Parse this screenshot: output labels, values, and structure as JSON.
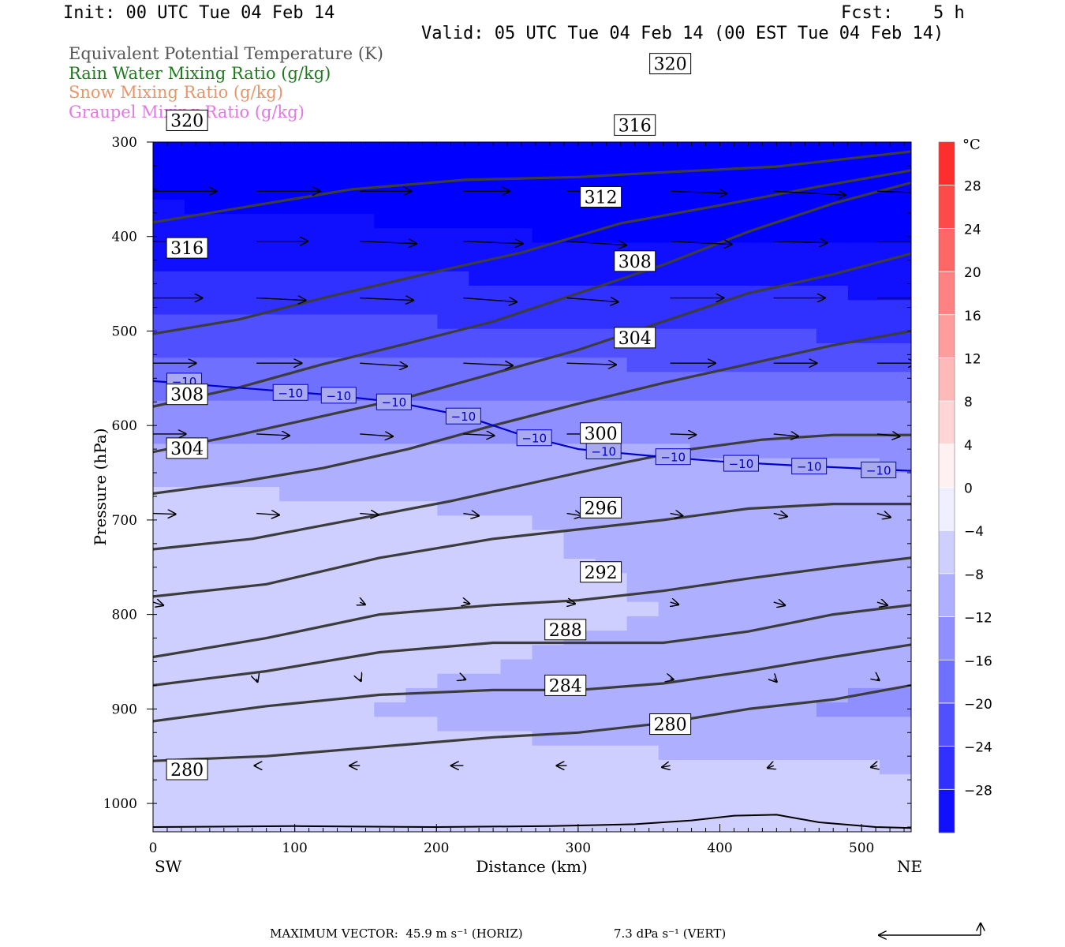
{
  "header": {
    "init": "Init: 00 UTC Tue 04 Feb 14",
    "fcst_label": "Fcst:",
    "fcst_value": "5 h",
    "valid": "Valid: 05 UTC Tue 04 Feb 14 (00 EST Tue 04 Feb 14)"
  },
  "legend": {
    "theta_e": {
      "label": "Equivalent Potential Temperature (K)",
      "color": "#555555"
    },
    "rain": {
      "label": "Rain Water Mixing Ratio (g/kg)",
      "color": "#1f7a1f"
    },
    "snow": {
      "label": "Snow Mixing Ratio (g/kg)",
      "color": "#e8956a"
    },
    "graupel": {
      "label": "Graupel Mixing Ratio (g/kg)",
      "color": "#e079e0"
    }
  },
  "footer": {
    "max_vector": "MAXIMUM VECTOR:  45.9 m s⁻¹ (HORIZ)",
    "vert": "7.3 dPa s⁻¹ (VERT)"
  },
  "chart_data": {
    "type": "cross-section",
    "xlabel": "Distance (km)",
    "ylabel": "Pressure (hPa)",
    "xlim": [
      0,
      535
    ],
    "ylim": [
      1030,
      300
    ],
    "x_ticks": [
      0,
      100,
      200,
      300,
      400,
      500
    ],
    "y_ticks": [
      300,
      400,
      500,
      600,
      700,
      800,
      900,
      1000
    ],
    "x_end_labels": {
      "left": "SW",
      "right": "NE"
    },
    "colorbar": {
      "unit": "°C",
      "tick_labels": [
        "28",
        "24",
        "20",
        "16",
        "12",
        "8",
        "4",
        "0",
        "−4",
        "−8",
        "−12",
        "−16",
        "−20",
        "−24",
        "−28"
      ],
      "tick_values": [
        28,
        24,
        20,
        16,
        12,
        8,
        4,
        0,
        -4,
        -8,
        -12,
        -16,
        -20,
        -24,
        -28
      ],
      "range": [
        -32,
        32
      ],
      "warm_color": "#ff2020",
      "cold_color": "#0000ff"
    },
    "temperature_shading": {
      "description_levels_hPa": [
        300,
        400,
        500,
        600,
        700,
        800,
        900,
        1000
      ],
      "left_temp_C": [
        -34,
        -31,
        -22,
        -13,
        -5,
        -4,
        -6,
        -5
      ],
      "right_temp_C": [
        -35,
        -33,
        -25,
        -13,
        -11,
        -10,
        -13,
        -5
      ]
    },
    "isotherm_minus10": {
      "label": "−10",
      "color": "#0000cc",
      "points": [
        [
          0,
          553
        ],
        [
          60,
          560
        ],
        [
          120,
          567
        ],
        [
          170,
          575
        ],
        [
          220,
          590
        ],
        [
          260,
          610
        ],
        [
          300,
          625
        ],
        [
          350,
          632
        ],
        [
          400,
          638
        ],
        [
          450,
          642
        ],
        [
          535,
          648
        ]
      ],
      "label_positions": [
        [
          22,
          553
        ],
        [
          97,
          565
        ],
        [
          131,
          568
        ],
        [
          170,
          575
        ],
        [
          219,
          590
        ],
        [
          269,
          613
        ],
        [
          318,
          627
        ],
        [
          367,
          633
        ],
        [
          415,
          640
        ],
        [
          463,
          643
        ],
        [
          512,
          647
        ]
      ]
    },
    "theta_e_contours": [
      {
        "value": "320",
        "points": [
          [
            0,
            385
          ],
          [
            60,
            370
          ],
          [
            140,
            350
          ],
          [
            220,
            340
          ],
          [
            300,
            337
          ],
          [
            360,
            332
          ],
          [
            440,
            326
          ],
          [
            535,
            310
          ]
        ],
        "labels": [
          [
            24,
            277
          ],
          [
            365,
            217
          ]
        ]
      },
      {
        "value": "316",
        "points": [
          [
            0,
            503
          ],
          [
            60,
            488
          ],
          [
            120,
            465
          ],
          [
            200,
            437
          ],
          [
            260,
            417
          ],
          [
            330,
            386
          ],
          [
            400,
            367
          ],
          [
            470,
            347
          ],
          [
            535,
            330
          ]
        ],
        "labels": [
          [
            24,
            412
          ],
          [
            340,
            282
          ]
        ]
      },
      {
        "value": "312",
        "points": [
          [
            0,
            580
          ],
          [
            60,
            560
          ],
          [
            120,
            535
          ],
          [
            180,
            513
          ],
          [
            240,
            490
          ],
          [
            300,
            460
          ],
          [
            360,
            430
          ],
          [
            420,
            395
          ],
          [
            480,
            365
          ],
          [
            535,
            343
          ]
        ],
        "labels": [
          [
            316,
            358
          ]
        ]
      },
      {
        "value": "308",
        "points": [
          [
            0,
            628
          ],
          [
            60,
            610
          ],
          [
            120,
            590
          ],
          [
            180,
            570
          ],
          [
            240,
            545
          ],
          [
            300,
            520
          ],
          [
            360,
            490
          ],
          [
            420,
            460
          ],
          [
            480,
            440
          ],
          [
            535,
            418
          ]
        ],
        "labels": [
          [
            24,
            567
          ],
          [
            340,
            426
          ]
        ]
      },
      {
        "value": "304",
        "points": [
          [
            0,
            672
          ],
          [
            60,
            660
          ],
          [
            120,
            645
          ],
          [
            180,
            625
          ],
          [
            240,
            600
          ],
          [
            300,
            577
          ],
          [
            360,
            555
          ],
          [
            420,
            535
          ],
          [
            480,
            515
          ],
          [
            535,
            500
          ]
        ],
        "labels": [
          [
            24,
            624
          ],
          [
            340,
            507
          ]
        ]
      },
      {
        "value": "300",
        "points": [
          [
            0,
            731
          ],
          [
            70,
            720
          ],
          [
            140,
            700
          ],
          [
            210,
            680
          ],
          [
            270,
            660
          ],
          [
            330,
            640
          ],
          [
            380,
            625
          ],
          [
            430,
            615
          ],
          [
            480,
            610
          ],
          [
            535,
            610
          ]
        ],
        "labels": [
          [
            316,
            608
          ]
        ]
      },
      {
        "value": "296",
        "points": [
          [
            0,
            781
          ],
          [
            80,
            768
          ],
          [
            160,
            740
          ],
          [
            240,
            720
          ],
          [
            300,
            710
          ],
          [
            360,
            700
          ],
          [
            420,
            688
          ],
          [
            480,
            683
          ],
          [
            535,
            683
          ]
        ],
        "labels": [
          [
            316,
            687
          ]
        ]
      },
      {
        "value": "292",
        "points": [
          [
            0,
            845
          ],
          [
            80,
            825
          ],
          [
            160,
            800
          ],
          [
            240,
            790
          ],
          [
            300,
            785
          ],
          [
            360,
            775
          ],
          [
            420,
            762
          ],
          [
            480,
            750
          ],
          [
            535,
            740
          ]
        ],
        "labels": [
          [
            316,
            755
          ]
        ]
      },
      {
        "value": "288",
        "points": [
          [
            0,
            875
          ],
          [
            80,
            860
          ],
          [
            160,
            840
          ],
          [
            240,
            830
          ],
          [
            300,
            830
          ],
          [
            360,
            830
          ],
          [
            420,
            818
          ],
          [
            480,
            800
          ],
          [
            535,
            790
          ]
        ],
        "labels": [
          [
            291,
            816
          ]
        ]
      },
      {
        "value": "284",
        "points": [
          [
            0,
            913
          ],
          [
            80,
            897
          ],
          [
            160,
            885
          ],
          [
            240,
            880
          ],
          [
            300,
            880
          ],
          [
            360,
            873
          ],
          [
            420,
            860
          ],
          [
            480,
            845
          ],
          [
            535,
            832
          ]
        ],
        "labels": [
          [
            291,
            875
          ]
        ]
      },
      {
        "value": "280",
        "points": [
          [
            0,
            955
          ],
          [
            80,
            950
          ],
          [
            160,
            940
          ],
          [
            240,
            930
          ],
          [
            300,
            925
          ],
          [
            360,
            915
          ],
          [
            420,
            900
          ],
          [
            480,
            890
          ],
          [
            535,
            875
          ]
        ],
        "labels": [
          [
            24,
            964
          ],
          [
            365,
            916
          ]
        ]
      }
    ],
    "surface_line": {
      "points": [
        [
          0,
          1025
        ],
        [
          100,
          1024
        ],
        [
          200,
          1025
        ],
        [
          280,
          1024
        ],
        [
          340,
          1022
        ],
        [
          380,
          1018
        ],
        [
          410,
          1013
        ],
        [
          440,
          1012
        ],
        [
          470,
          1020
        ],
        [
          510,
          1025
        ],
        [
          535,
          1026
        ]
      ]
    },
    "wind_vectors": [
      {
        "x": 0,
        "p": 352,
        "u": 62,
        "w": 0
      },
      {
        "x": 73,
        "p": 352,
        "u": 62,
        "w": 0
      },
      {
        "x": 146,
        "p": 352,
        "u": 50,
        "w": 0
      },
      {
        "x": 219,
        "p": 352,
        "u": 45,
        "w": 0
      },
      {
        "x": 292,
        "p": 352,
        "u": 45,
        "w": 0
      },
      {
        "x": 365,
        "p": 352,
        "u": 55,
        "w": 3
      },
      {
        "x": 438,
        "p": 352,
        "u": 70,
        "w": 5
      },
      {
        "x": 511,
        "p": 352,
        "u": 60,
        "w": 3
      },
      {
        "x": 0,
        "p": 405,
        "u": 50,
        "w": 0
      },
      {
        "x": 73,
        "p": 405,
        "u": 50,
        "w": 0
      },
      {
        "x": 146,
        "p": 405,
        "u": 55,
        "w": 3
      },
      {
        "x": 219,
        "p": 405,
        "u": 58,
        "w": 3
      },
      {
        "x": 292,
        "p": 405,
        "u": 58,
        "w": 5
      },
      {
        "x": 365,
        "p": 405,
        "u": 60,
        "w": 4
      },
      {
        "x": 438,
        "p": 405,
        "u": 52,
        "w": 2
      },
      {
        "x": 511,
        "p": 405,
        "u": 48,
        "w": 0
      },
      {
        "x": 0,
        "p": 465,
        "u": 48,
        "w": 0
      },
      {
        "x": 73,
        "p": 465,
        "u": 48,
        "w": 3
      },
      {
        "x": 146,
        "p": 465,
        "u": 52,
        "w": 3
      },
      {
        "x": 219,
        "p": 465,
        "u": 52,
        "w": 5
      },
      {
        "x": 292,
        "p": 465,
        "u": 50,
        "w": 5
      },
      {
        "x": 365,
        "p": 465,
        "u": 52,
        "w": 0
      },
      {
        "x": 438,
        "p": 465,
        "u": 50,
        "w": 0
      },
      {
        "x": 511,
        "p": 465,
        "u": 46,
        "w": 0
      },
      {
        "x": 0,
        "p": 534,
        "u": 42,
        "w": 0
      },
      {
        "x": 73,
        "p": 534,
        "u": 44,
        "w": 0
      },
      {
        "x": 146,
        "p": 534,
        "u": 46,
        "w": 4
      },
      {
        "x": 219,
        "p": 534,
        "u": 48,
        "w": 3
      },
      {
        "x": 292,
        "p": 534,
        "u": 48,
        "w": 2
      },
      {
        "x": 365,
        "p": 534,
        "u": 44,
        "w": 0
      },
      {
        "x": 438,
        "p": 534,
        "u": 42,
        "w": 0
      },
      {
        "x": 511,
        "p": 534,
        "u": 38,
        "w": 0
      },
      {
        "x": 0,
        "p": 609,
        "u": 32,
        "w": 0
      },
      {
        "x": 73,
        "p": 609,
        "u": 32,
        "w": 2
      },
      {
        "x": 146,
        "p": 609,
        "u": 32,
        "w": 3
      },
      {
        "x": 219,
        "p": 609,
        "u": 30,
        "w": 2
      },
      {
        "x": 292,
        "p": 609,
        "u": 28,
        "w": 0
      },
      {
        "x": 365,
        "p": 609,
        "u": 25,
        "w": 1
      },
      {
        "x": 438,
        "p": 609,
        "u": 24,
        "w": 3
      },
      {
        "x": 511,
        "p": 609,
        "u": 22,
        "w": 3
      },
      {
        "x": 0,
        "p": 693,
        "u": 22,
        "w": 1
      },
      {
        "x": 73,
        "p": 693,
        "u": 22,
        "w": 2
      },
      {
        "x": 146,
        "p": 693,
        "u": 18,
        "w": 2
      },
      {
        "x": 219,
        "p": 693,
        "u": 15,
        "w": 3
      },
      {
        "x": 292,
        "p": 693,
        "u": 15,
        "w": 3
      },
      {
        "x": 365,
        "p": 693,
        "u": 12,
        "w": 3
      },
      {
        "x": 438,
        "p": 693,
        "u": 13,
        "w": 4
      },
      {
        "x": 511,
        "p": 693,
        "u": 13,
        "w": 5
      },
      {
        "x": 0,
        "p": 787,
        "u": 10,
        "w": 4
      },
      {
        "x": 146,
        "p": 787,
        "u": 5,
        "w": 3
      },
      {
        "x": 219,
        "p": 787,
        "u": 6,
        "w": 2
      },
      {
        "x": 292,
        "p": 787,
        "u": 8,
        "w": 2
      },
      {
        "x": 365,
        "p": 787,
        "u": 8,
        "w": 3
      },
      {
        "x": 438,
        "p": 787,
        "u": 11,
        "w": 4
      },
      {
        "x": 511,
        "p": 787,
        "u": 10,
        "w": 4
      },
      {
        "x": 73,
        "p": 868,
        "u": 1,
        "w": 4
      },
      {
        "x": 146,
        "p": 868,
        "u": 1,
        "w": 3
      },
      {
        "x": 219,
        "p": 868,
        "u": 2,
        "w": 1
      },
      {
        "x": 365,
        "p": 868,
        "u": 3,
        "w": 1
      },
      {
        "x": 438,
        "p": 868,
        "u": 3,
        "w": 4
      },
      {
        "x": 511,
        "p": 868,
        "u": 2,
        "w": 2
      },
      {
        "x": 73,
        "p": 960,
        "u": -2,
        "w": 0
      },
      {
        "x": 146,
        "p": 960,
        "u": -10,
        "w": 0
      },
      {
        "x": 219,
        "p": 960,
        "u": -12,
        "w": 0
      },
      {
        "x": 292,
        "p": 960,
        "u": -10,
        "w": 0
      },
      {
        "x": 365,
        "p": 960,
        "u": -8,
        "w": 2
      },
      {
        "x": 438,
        "p": 960,
        "u": -6,
        "w": 3
      },
      {
        "x": 511,
        "p": 960,
        "u": -6,
        "w": 2
      }
    ],
    "reference_vector": {
      "u": -60,
      "w": 2
    }
  }
}
